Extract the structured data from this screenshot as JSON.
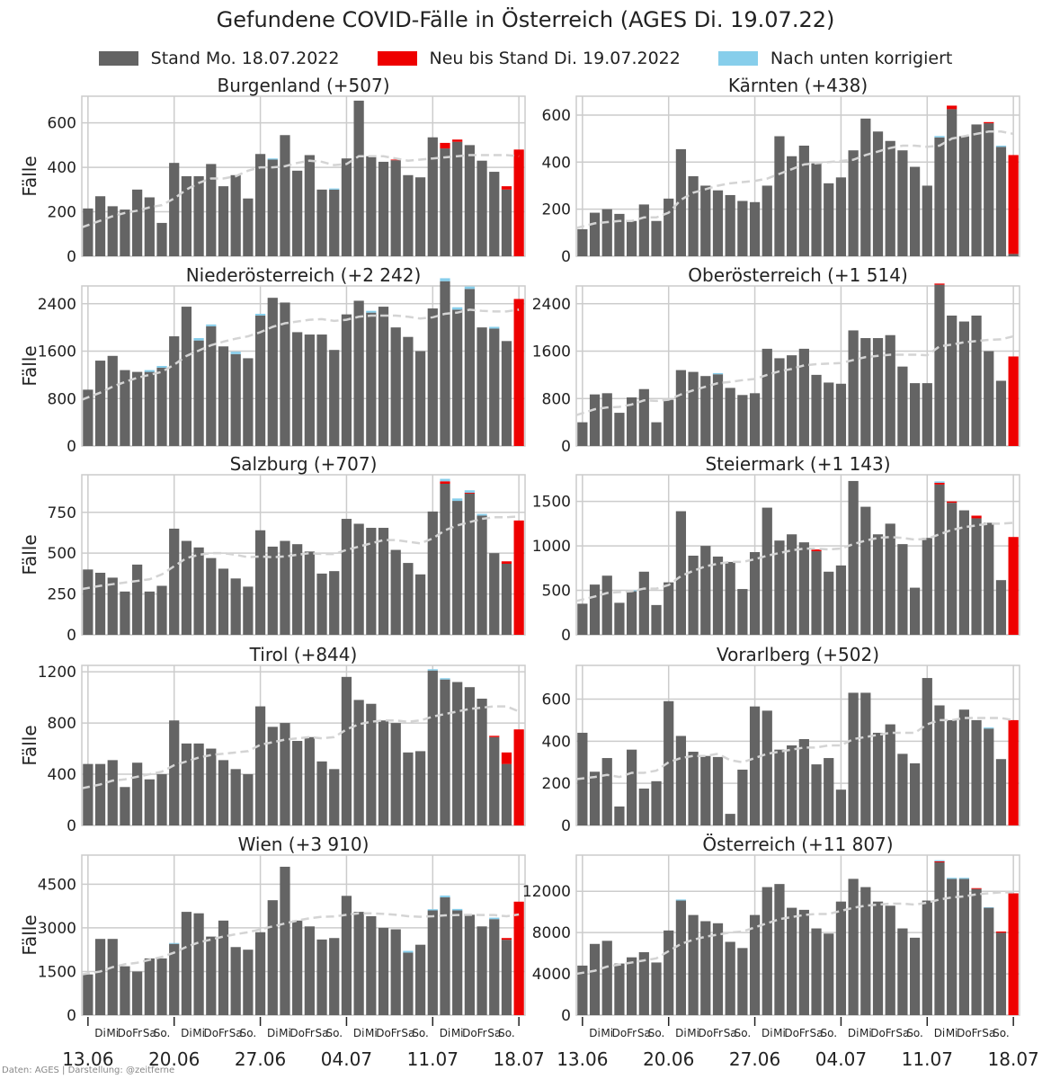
{
  "title": "Gefundene COVID-Fälle in Österreich (AGES Di. 19.07.22)",
  "legend": [
    {
      "label": "Stand Mo. 18.07.2022",
      "color": "#646464"
    },
    {
      "label": "Neu bis Stand Di. 19.07.2022",
      "color": "#ee0000"
    },
    {
      "label": "Nach unten korrigiert",
      "color": "#87ceeb"
    }
  ],
  "footer": "Daten: AGES | Darstellung: @zeitferne",
  "ylabel": "Fälle",
  "x_date_labels": [
    "13.06",
    "20.06",
    "27.06",
    "04.07",
    "11.07",
    "18.07"
  ],
  "x_weekday_labels": [
    "Di",
    "Mi",
    "Do",
    "Fr",
    "Sa",
    "So."
  ],
  "chart_data": [
    {
      "type": "bar",
      "title": "Burgenland (+507)",
      "ylim": [
        0,
        720
      ],
      "yticks": [
        0,
        200,
        400,
        600
      ],
      "values": [
        215,
        270,
        225,
        210,
        300,
        265,
        150,
        420,
        360,
        360,
        415,
        315,
        365,
        260,
        460,
        435,
        545,
        385,
        455,
        300,
        300,
        440,
        700,
        450,
        425,
        435,
        365,
        355,
        535,
        510,
        525,
        500,
        430,
        380,
        315,
        480
      ],
      "corrections": {
        "15": 5,
        "20": 5
      },
      "new": {
        "25": 3,
        "29": 25,
        "30": 10,
        "34": 15,
        "35": 480
      },
      "avg": [
        130,
        160,
        180,
        195,
        205,
        220,
        230,
        260,
        300,
        330,
        350,
        350,
        360,
        385,
        400,
        400,
        405,
        420,
        430,
        425,
        410,
        415,
        450,
        450,
        450,
        440,
        430,
        435,
        440,
        445,
        450,
        455,
        455,
        455,
        455,
        450
      ]
    },
    {
      "type": "bar",
      "title": "Kärnten (+438)",
      "ylim": [
        0,
        680
      ],
      "yticks": [
        0,
        200,
        400,
        600
      ],
      "values": [
        115,
        185,
        200,
        180,
        150,
        220,
        150,
        245,
        455,
        340,
        300,
        280,
        260,
        235,
        230,
        300,
        510,
        425,
        470,
        395,
        310,
        335,
        450,
        585,
        530,
        490,
        450,
        380,
        300,
        505,
        640,
        510,
        560,
        570,
        465,
        430
      ],
      "corrections": {
        "29": 6,
        "34": 5
      },
      "new": {
        "30": 15,
        "33": 5,
        "35": 420
      },
      "avg": [
        120,
        140,
        145,
        150,
        150,
        165,
        165,
        185,
        240,
        270,
        285,
        300,
        310,
        315,
        320,
        330,
        350,
        370,
        390,
        395,
        400,
        405,
        410,
        430,
        445,
        460,
        470,
        470,
        465,
        470,
        500,
        510,
        520,
        530,
        530,
        520
      ]
    },
    {
      "type": "bar",
      "title": "Niederösterreich (+2 242)",
      "ylim": [
        0,
        2700
      ],
      "yticks": [
        0,
        800,
        1600,
        2400
      ],
      "values": [
        950,
        1440,
        1520,
        1280,
        1250,
        1250,
        1320,
        1850,
        2350,
        1780,
        2020,
        1680,
        1550,
        1480,
        2200,
        2500,
        2420,
        1920,
        1880,
        1880,
        1620,
        2220,
        2450,
        2250,
        2350,
        2000,
        1840,
        1600,
        2320,
        2780,
        2300,
        2650,
        2000,
        1980,
        1770,
        2480
      ],
      "corrections": {
        "5": 30,
        "6": 30,
        "9": 40,
        "10": 30,
        "12": 40,
        "14": 30,
        "23": 30,
        "29": 50,
        "30": 40,
        "31": 40,
        "33": 30
      },
      "new": {
        "35": 2480
      },
      "avg": [
        780,
        900,
        1000,
        1080,
        1150,
        1200,
        1250,
        1370,
        1520,
        1610,
        1700,
        1760,
        1810,
        1850,
        1920,
        2010,
        2070,
        2100,
        2130,
        2140,
        2110,
        2130,
        2180,
        2200,
        2200,
        2200,
        2180,
        2150,
        2170,
        2230,
        2250,
        2300,
        2280,
        2270,
        2270,
        2300
      ]
    },
    {
      "type": "bar",
      "title": "Oberösterreich (+1 514)",
      "ylim": [
        0,
        2700
      ],
      "yticks": [
        0,
        800,
        1600,
        2400
      ],
      "values": [
        400,
        870,
        890,
        560,
        820,
        960,
        400,
        780,
        1280,
        1250,
        1180,
        1210,
        980,
        860,
        890,
        1640,
        1480,
        1530,
        1640,
        1200,
        1070,
        1050,
        1950,
        1820,
        1820,
        1870,
        1340,
        1060,
        1060,
        2740,
        2200,
        2100,
        2200,
        1600,
        1100,
        1510
      ],
      "corrections": {
        "11": 20
      },
      "new": {
        "29": 20,
        "35": 1510
      },
      "avg": [
        520,
        620,
        650,
        660,
        700,
        770,
        760,
        780,
        870,
        940,
        1000,
        1060,
        1080,
        1110,
        1130,
        1200,
        1260,
        1300,
        1360,
        1380,
        1390,
        1400,
        1450,
        1500,
        1520,
        1540,
        1540,
        1540,
        1530,
        1680,
        1710,
        1750,
        1770,
        1790,
        1800,
        1850
      ]
    },
    {
      "type": "bar",
      "title": "Salzburg (+707)",
      "ylim": [
        0,
        980
      ],
      "yticks": [
        0,
        250,
        500,
        750
      ],
      "values": [
        400,
        380,
        350,
        265,
        430,
        265,
        300,
        650,
        575,
        535,
        470,
        405,
        345,
        295,
        640,
        540,
        575,
        555,
        510,
        375,
        390,
        710,
        680,
        655,
        655,
        520,
        440,
        370,
        755,
        940,
        820,
        870,
        730,
        500,
        450,
        700
      ],
      "corrections": {
        "29": 15,
        "30": 15,
        "31": 15,
        "32": 10
      },
      "new": {
        "29": 15,
        "31": 5,
        "34": 15,
        "35": 700
      },
      "avg": [
        280,
        300,
        310,
        320,
        330,
        340,
        370,
        420,
        470,
        490,
        500,
        500,
        490,
        475,
        480,
        475,
        480,
        490,
        500,
        495,
        495,
        520,
        540,
        560,
        580,
        580,
        570,
        560,
        590,
        640,
        670,
        690,
        710,
        720,
        720,
        725
      ]
    },
    {
      "type": "bar",
      "title": "Steiermark (+1 143)",
      "ylim": [
        0,
        1800
      ],
      "yticks": [
        0,
        500,
        1000,
        1500
      ],
      "values": [
        350,
        565,
        665,
        360,
        490,
        710,
        335,
        590,
        1390,
        890,
        1000,
        880,
        820,
        515,
        930,
        1430,
        1060,
        1130,
        1040,
        960,
        710,
        780,
        1730,
        1440,
        1130,
        1250,
        1020,
        530,
        1090,
        1710,
        1500,
        1400,
        1340,
        1260,
        615,
        1100
      ],
      "corrections": {
        "4": 10,
        "29": 15
      },
      "new": {
        "19": 20,
        "29": 20,
        "30": 15,
        "32": 30,
        "35": 1100
      },
      "avg": [
        380,
        430,
        470,
        480,
        490,
        520,
        520,
        560,
        660,
        720,
        770,
        800,
        820,
        820,
        850,
        890,
        920,
        950,
        970,
        970,
        960,
        970,
        1020,
        1060,
        1090,
        1100,
        1090,
        1070,
        1080,
        1130,
        1180,
        1210,
        1230,
        1250,
        1250,
        1260
      ]
    },
    {
      "type": "bar",
      "title": "Tirol (+844)",
      "ylim": [
        0,
        1250
      ],
      "yticks": [
        0,
        400,
        800,
        1200
      ],
      "values": [
        480,
        480,
        510,
        300,
        490,
        360,
        400,
        820,
        640,
        640,
        600,
        510,
        440,
        400,
        930,
        770,
        800,
        660,
        690,
        500,
        440,
        1160,
        980,
        950,
        820,
        800,
        570,
        580,
        1210,
        1140,
        1120,
        1080,
        990,
        700,
        570,
        750
      ],
      "corrections": {
        "28": 10,
        "29": 10
      },
      "new": {
        "33": 10,
        "34": 90,
        "35": 750
      },
      "avg": [
        290,
        320,
        350,
        360,
        380,
        400,
        420,
        470,
        500,
        530,
        550,
        560,
        570,
        580,
        630,
        650,
        670,
        680,
        690,
        680,
        690,
        750,
        790,
        810,
        820,
        820,
        810,
        820,
        850,
        870,
        890,
        910,
        920,
        930,
        930,
        890
      ]
    },
    {
      "type": "bar",
      "title": "Vorarlberg (+502)",
      "ylim": [
        0,
        760
      ],
      "yticks": [
        0,
        200,
        400,
        600
      ],
      "values": [
        440,
        255,
        320,
        90,
        360,
        175,
        210,
        590,
        425,
        350,
        330,
        325,
        55,
        265,
        565,
        545,
        360,
        380,
        410,
        290,
        320,
        170,
        630,
        630,
        440,
        480,
        340,
        295,
        700,
        570,
        500,
        550,
        500,
        460,
        315,
        500
      ],
      "corrections": {
        "33": 5
      },
      "new": {
        "35": 500
      },
      "avg": [
        220,
        230,
        240,
        230,
        250,
        250,
        260,
        300,
        320,
        330,
        330,
        340,
        310,
        300,
        320,
        340,
        350,
        360,
        370,
        370,
        380,
        380,
        410,
        420,
        430,
        440,
        440,
        440,
        480,
        500,
        500,
        510,
        510,
        510,
        510,
        500
      ]
    },
    {
      "type": "bar",
      "title": "Wien (+3 910)",
      "ylim": [
        0,
        5500
      ],
      "yticks": [
        0,
        1500,
        3000,
        4500
      ],
      "values": [
        1400,
        2620,
        2620,
        1680,
        1500,
        1950,
        1950,
        2450,
        3550,
        3500,
        2700,
        3250,
        2340,
        2250,
        2850,
        3950,
        5100,
        3250,
        3050,
        2600,
        2650,
        4100,
        3550,
        3400,
        3000,
        2950,
        2150,
        2420,
        3600,
        4050,
        3600,
        3450,
        3050,
        3300,
        2650,
        3900
      ],
      "corrections": {
        "7": 30,
        "26": 60,
        "28": 40,
        "29": 60,
        "30": 50,
        "33": 50
      },
      "new": {
        "34": 60,
        "35": 3900
      },
      "avg": [
        1400,
        1500,
        1650,
        1750,
        1800,
        1900,
        2000,
        2150,
        2350,
        2500,
        2600,
        2700,
        2780,
        2850,
        2950,
        3050,
        3150,
        3250,
        3330,
        3380,
        3390,
        3450,
        3500,
        3500,
        3480,
        3450,
        3400,
        3380,
        3400,
        3430,
        3440,
        3450,
        3440,
        3440,
        3400,
        3460
      ]
    },
    {
      "type": "bar",
      "title": "Österreich (+11 807)",
      "ylim": [
        0,
        15500
      ],
      "yticks": [
        0,
        4000,
        8000,
        12000
      ],
      "values": [
        4800,
        6900,
        7200,
        5000,
        5600,
        6100,
        5100,
        8200,
        11100,
        9700,
        9100,
        8900,
        7100,
        6500,
        9700,
        12400,
        12700,
        10400,
        10200,
        8400,
        7900,
        11000,
        13200,
        12400,
        11000,
        10600,
        8400,
        7500,
        11100,
        14900,
        13200,
        13200,
        12300,
        10400,
        8100,
        11800
      ],
      "corrections": {
        "8": 100,
        "29": 100,
        "30": 100,
        "31": 100,
        "33": 50
      },
      "new": {
        "29": 100,
        "32": 80,
        "34": 120,
        "35": 11800
      },
      "avg": [
        4000,
        4300,
        4700,
        4900,
        5100,
        5300,
        5500,
        6200,
        6900,
        7300,
        7600,
        7800,
        8000,
        8100,
        8500,
        8900,
        9300,
        9500,
        9700,
        9800,
        9800,
        10100,
        10400,
        10600,
        10700,
        10800,
        10800,
        10700,
        10900,
        11200,
        11400,
        11500,
        11700,
        11800,
        11900,
        11900
      ]
    }
  ]
}
